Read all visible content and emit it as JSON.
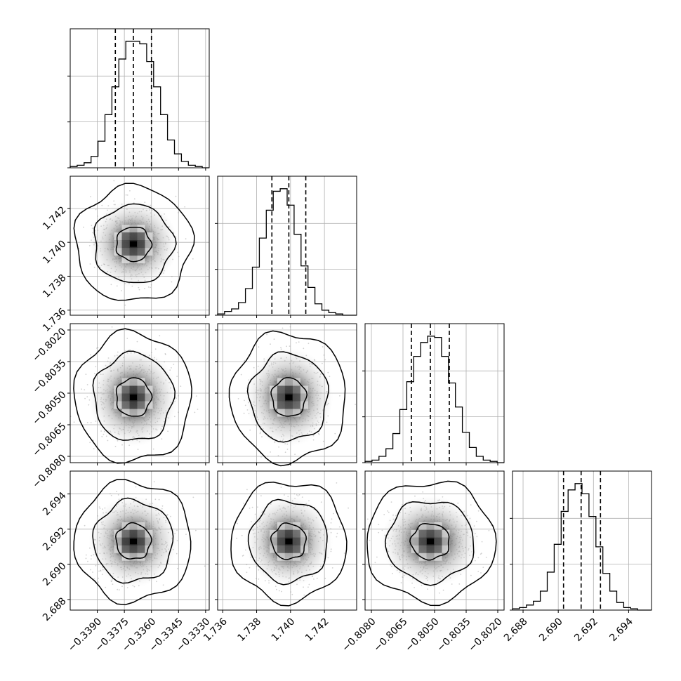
{
  "chart_data": {
    "type": "corner",
    "parameters": [
      {
        "range": [
          -0.3405,
          -0.3328
        ],
        "ticks": [
          -0.339,
          -0.3375,
          -0.336,
          -0.3345,
          -0.333
        ],
        "tick_labels": [
          "−0.3390",
          "−0.3375",
          "−0.3360",
          "−0.3345",
          "−0.3330"
        ],
        "quantiles": [
          -0.338,
          -0.337,
          -0.336
        ],
        "mean": -0.337,
        "std": 0.00095
      },
      {
        "range": [
          1.7357,
          1.7439
        ],
        "ticks": [
          1.736,
          1.738,
          1.74,
          1.742
        ],
        "tick_labels": [
          "1.736",
          "1.738",
          "1.740",
          "1.742"
        ],
        "quantiles": [
          1.7389,
          1.7399,
          1.7409
        ],
        "mean": 1.7399,
        "std": 0.001
      },
      {
        "range": [
          -0.8083,
          -0.8017
        ],
        "ticks": [
          -0.808,
          -0.8065,
          -0.805,
          -0.8035,
          -0.802
        ],
        "tick_labels": [
          "−0.8080",
          "−0.8065",
          "−0.8050",
          "−0.8035",
          "−0.8020"
        ],
        "quantiles": [
          -0.8061,
          -0.8052,
          -0.8043
        ],
        "mean": -0.8052,
        "std": 0.0009
      },
      {
        "range": [
          2.6874,
          2.6953
        ],
        "ticks": [
          2.688,
          2.69,
          2.692,
          2.694
        ],
        "tick_labels": [
          "2.688",
          "2.690",
          "2.692",
          "2.694"
        ],
        "quantiles": [
          2.6903,
          2.6913,
          2.6924
        ],
        "mean": 2.6913,
        "std": 0.001
      }
    ],
    "histogram_counts": [
      [
        1,
        2,
        4,
        9,
        21,
        42,
        64,
        86,
        100,
        100,
        98,
        84,
        64,
        42,
        22,
        11,
        5,
        2,
        1,
        0
      ],
      [
        1,
        3,
        5,
        10,
        21,
        38,
        61,
        83,
        98,
        100,
        87,
        64,
        39,
        22,
        9,
        4,
        2,
        1,
        0,
        0
      ],
      [
        1,
        2,
        5,
        11,
        23,
        42,
        64,
        84,
        95,
        100,
        99,
        84,
        63,
        44,
        24,
        12,
        5,
        2,
        1,
        0
      ],
      [
        1,
        2,
        4,
        7,
        15,
        30,
        52,
        78,
        95,
        100,
        92,
        74,
        50,
        29,
        15,
        6,
        2,
        1,
        0,
        0
      ]
    ],
    "contour_levels": [
      "39.3%",
      "86.5%",
      "98.9%"
    ],
    "grid": true,
    "quantile_style": "dashed"
  }
}
